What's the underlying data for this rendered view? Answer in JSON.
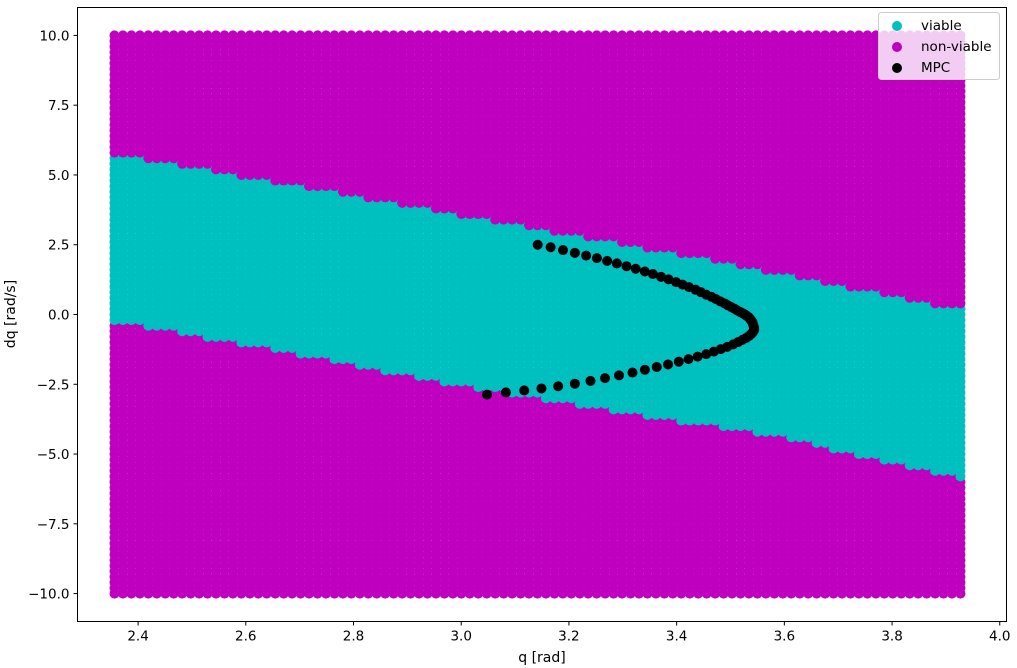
{
  "chart_data": {
    "type": "scatter",
    "xlabel": "q [rad]",
    "ylabel": "dq [rad/s]",
    "xlim": [
      2.2875,
      4.0125
    ],
    "ylim": [
      -11.0,
      11.0
    ],
    "x_ticks": [
      2.4,
      2.6,
      2.8,
      3.0,
      3.2,
      3.4,
      3.6,
      3.8,
      4.0
    ],
    "x_tick_labels": [
      "2.4",
      "2.6",
      "2.8",
      "3.0",
      "3.2",
      "3.4",
      "3.6",
      "3.8",
      "4.0"
    ],
    "y_ticks": [
      -10.0,
      -7.5,
      -5.0,
      -2.5,
      0.0,
      2.5,
      5.0,
      7.5,
      10.0
    ],
    "y_tick_labels": [
      "−10.0",
      "−7.5",
      "−5.0",
      "−2.5",
      "0.0",
      "2.5",
      "5.0",
      "7.5",
      "10.0"
    ],
    "legend_position": "top-right",
    "grid": {
      "q_min": 2.3562,
      "q_max": 3.927,
      "q_count": 101,
      "dq_min": -10.0,
      "dq_max": 10.0,
      "dq_count": 101
    },
    "viable_boundary": {
      "upper": [
        [
          2.3562,
          5.8
        ],
        [
          2.5,
          5.3
        ],
        [
          3.0,
          3.6
        ],
        [
          3.5,
          1.85
        ],
        [
          3.927,
          0.2
        ]
      ],
      "lower": [
        [
          2.3562,
          -0.2
        ],
        [
          2.7,
          -1.4
        ],
        [
          3.0,
          -2.55
        ],
        [
          3.2,
          -3.15
        ],
        [
          3.6,
          -4.4
        ],
        [
          3.927,
          -5.85
        ]
      ]
    },
    "series": [
      {
        "name": "viable",
        "color": "#00bfbf"
      },
      {
        "name": "non-viable",
        "color": "#bf00bf"
      },
      {
        "name": "MPC",
        "color": "#000000",
        "points": [
          [
            3.142,
            2.5
          ],
          [
            3.166,
            2.41
          ],
          [
            3.189,
            2.31
          ],
          [
            3.211,
            2.21
          ],
          [
            3.232,
            2.11
          ],
          [
            3.252,
            2.02
          ],
          [
            3.271,
            1.92
          ],
          [
            3.289,
            1.83
          ],
          [
            3.307,
            1.73
          ],
          [
            3.324,
            1.64
          ],
          [
            3.341,
            1.54
          ],
          [
            3.356,
            1.45
          ],
          [
            3.371,
            1.35
          ],
          [
            3.385,
            1.26
          ],
          [
            3.399,
            1.16
          ],
          [
            3.411,
            1.07
          ],
          [
            3.423,
            0.98
          ],
          [
            3.435,
            0.89
          ],
          [
            3.445,
            0.8
          ],
          [
            3.455,
            0.71
          ],
          [
            3.465,
            0.63
          ],
          [
            3.473,
            0.55
          ],
          [
            3.481,
            0.47
          ],
          [
            3.489,
            0.4
          ],
          [
            3.495,
            0.33
          ],
          [
            3.501,
            0.27
          ],
          [
            3.507,
            0.21
          ],
          [
            3.512,
            0.15
          ],
          [
            3.517,
            0.1
          ],
          [
            3.521,
            0.06
          ],
          [
            3.525,
            0.02
          ],
          [
            3.528,
            -0.02
          ],
          [
            3.531,
            -0.06
          ],
          [
            3.534,
            -0.1
          ],
          [
            3.536,
            -0.15
          ],
          [
            3.538,
            -0.2
          ],
          [
            3.54,
            -0.25
          ],
          [
            3.541,
            -0.3
          ],
          [
            3.542,
            -0.36
          ],
          [
            3.543,
            -0.42
          ],
          [
            3.544,
            -0.48
          ],
          [
            3.544,
            -0.55
          ],
          [
            3.542,
            -0.62
          ],
          [
            3.539,
            -0.69
          ],
          [
            3.535,
            -0.76
          ],
          [
            3.529,
            -0.84
          ],
          [
            3.522,
            -0.91
          ],
          [
            3.514,
            -0.99
          ],
          [
            3.505,
            -1.07
          ],
          [
            3.494,
            -1.16
          ],
          [
            3.482,
            -1.24
          ],
          [
            3.469,
            -1.33
          ],
          [
            3.455,
            -1.42
          ],
          [
            3.439,
            -1.51
          ],
          [
            3.422,
            -1.6
          ],
          [
            3.404,
            -1.69
          ],
          [
            3.384,
            -1.79
          ],
          [
            3.363,
            -1.88
          ],
          [
            3.341,
            -1.98
          ],
          [
            3.318,
            -2.08
          ],
          [
            3.293,
            -2.18
          ],
          [
            3.267,
            -2.28
          ],
          [
            3.24,
            -2.38
          ],
          [
            3.211,
            -2.48
          ],
          [
            3.18,
            -2.57
          ],
          [
            3.149,
            -2.65
          ],
          [
            3.117,
            -2.72
          ],
          [
            3.083,
            -2.79
          ],
          [
            3.048,
            -2.87
          ]
        ]
      }
    ]
  }
}
